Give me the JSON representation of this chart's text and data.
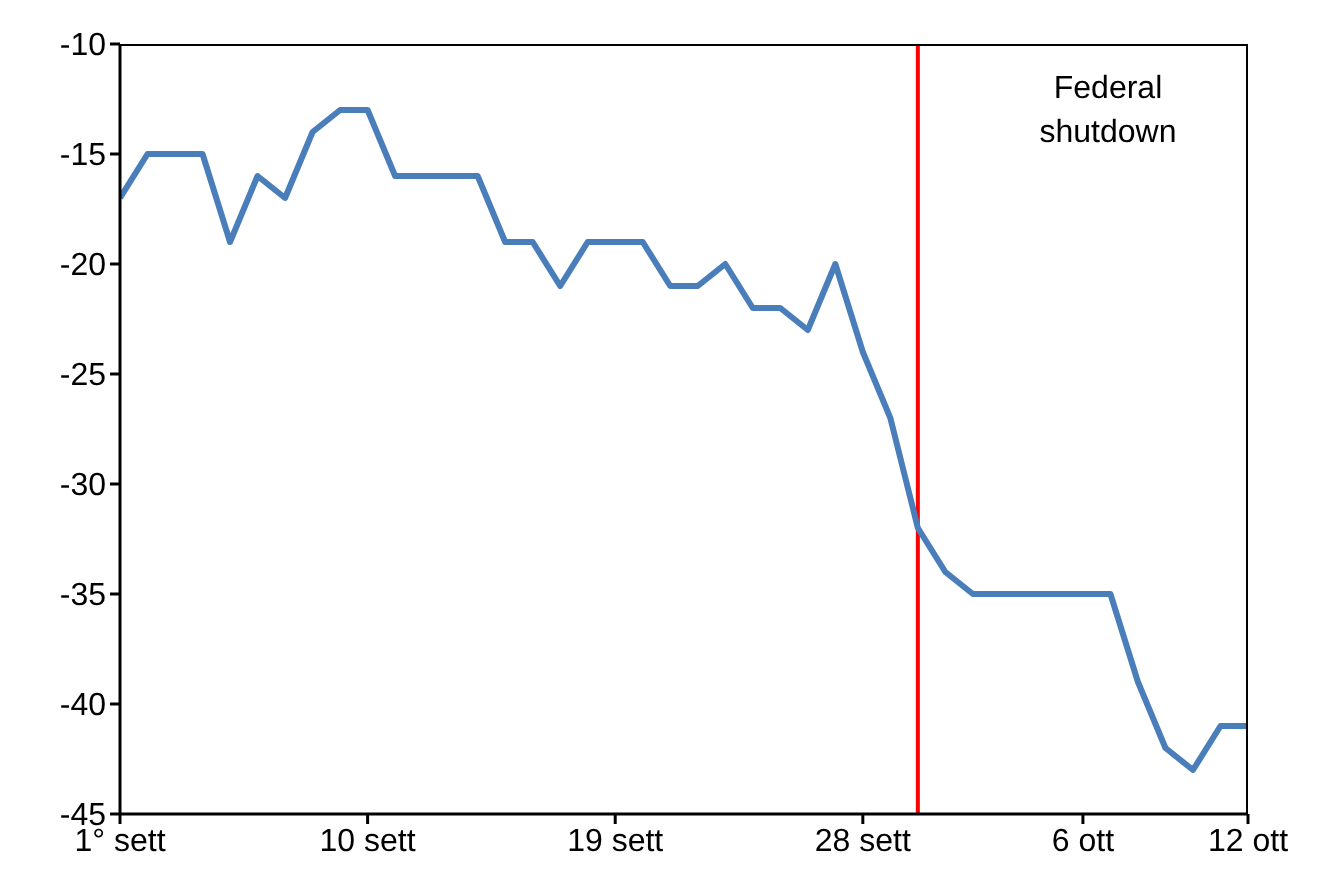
{
  "chart_data": {
    "type": "line",
    "x": [
      "--09-01",
      "--09-02",
      "--09-03",
      "--09-04",
      "--09-05",
      "--09-06",
      "--09-07",
      "--09-08",
      "--09-09",
      "--09-10",
      "--09-11",
      "--09-12",
      "--09-13",
      "--09-14",
      "--09-15",
      "--09-16",
      "--09-17",
      "--09-18",
      "--09-19",
      "--09-20",
      "--09-21",
      "--09-22",
      "--09-23",
      "--09-24",
      "--09-25",
      "--09-26",
      "--09-27",
      "--09-28",
      "--09-29",
      "--09-30",
      "--10-01",
      "--10-02",
      "--10-03",
      "--10-04",
      "--10-05",
      "--10-06",
      "--10-07",
      "--10-08",
      "--10-09",
      "--10-10",
      "--10-11",
      "--10-12"
    ],
    "series": [
      {
        "color": "#4a7ebb",
        "values": [
          -17,
          -15,
          -15,
          -15,
          -19,
          -16,
          -17,
          -14,
          -13,
          -13,
          -16,
          -16,
          -16,
          -16,
          -19,
          -19,
          -21,
          -19,
          -19,
          -19,
          -21,
          -21,
          -20,
          -22,
          -22,
          -23,
          -20,
          -24,
          -27,
          -32,
          -34,
          -35,
          -35,
          -35,
          -35,
          -35,
          -35,
          -39,
          -42,
          -43,
          -41,
          -41
        ]
      }
    ],
    "xlim": [
      "--09-01",
      "--10-12"
    ],
    "xticks": [
      {
        "value": "--09-01",
        "label": "1° sett"
      },
      {
        "value": "--09-10",
        "label": "10 sett"
      },
      {
        "value": "--09-19",
        "label": "19 sett"
      },
      {
        "value": "--09-28",
        "label": "28 sett"
      },
      {
        "value": "--10-06",
        "label": "6 ott"
      },
      {
        "value": "--10-12",
        "label": "12 ott"
      }
    ],
    "ylim": [
      -45,
      -10
    ],
    "yticks": [
      -45,
      -40,
      -35,
      -30,
      -25,
      -20,
      -15,
      -10
    ],
    "ref_lines": [
      {
        "axis": "x",
        "value": "--09-30",
        "color": "#ff0000"
      }
    ],
    "annotations": [
      "Federal shutdown"
    ],
    "grid": false,
    "legend": false,
    "marker": "none",
    "line_style": "solid"
  }
}
